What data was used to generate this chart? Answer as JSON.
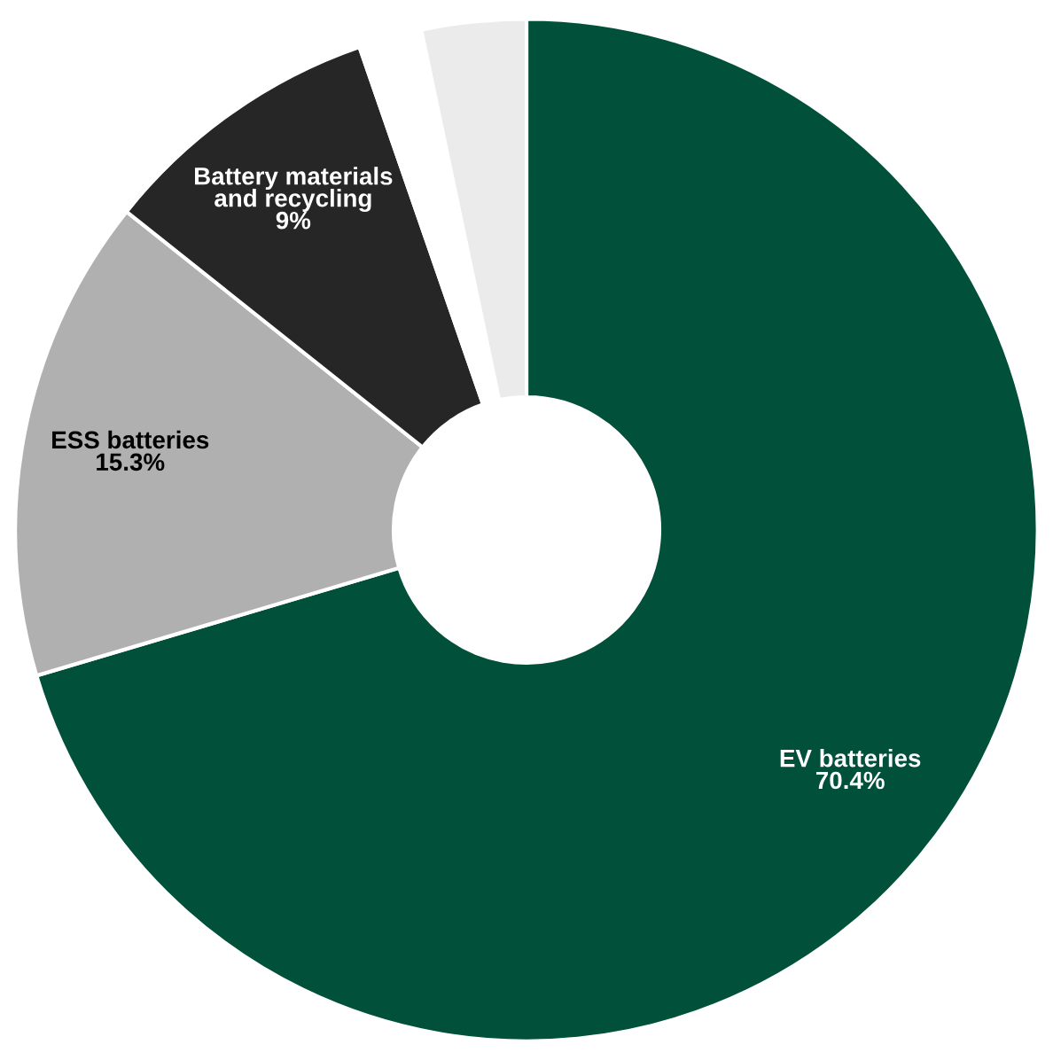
{
  "chart_data": {
    "type": "donut",
    "categories": [
      "EV batteries",
      "ESS batteries",
      "Battery materials and recycling",
      null,
      null
    ],
    "values": [
      70.4,
      15.3,
      9,
      2.0,
      3.3
    ],
    "value_labels": [
      "70.4%",
      "15.3%",
      "9%",
      null,
      null
    ],
    "colors": [
      "#00503a",
      "#b0b0b0",
      "#262626",
      "#ffffff",
      "#ebebeb"
    ]
  }
}
